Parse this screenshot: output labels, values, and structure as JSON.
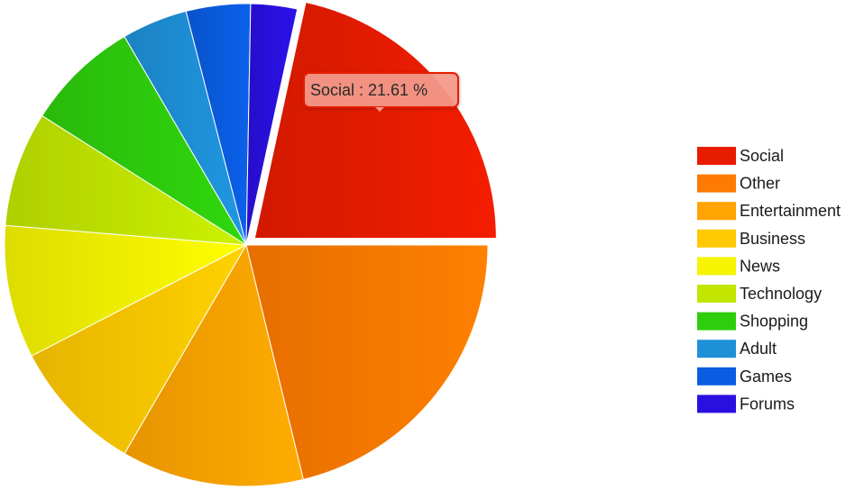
{
  "chart_data": {
    "type": "pie",
    "title": "",
    "unit": "%",
    "exploded_slice": "Social",
    "slices": [
      {
        "label": "Social",
        "value": 21.61,
        "color": "#e81c00"
      },
      {
        "label": "Other",
        "value": 21.2,
        "color": "#ff7a00"
      },
      {
        "label": "Entertainment",
        "value": 12.2,
        "color": "#ffa400"
      },
      {
        "label": "Business",
        "value": 9.0,
        "color": "#ffc800"
      },
      {
        "label": "News",
        "value": 8.9,
        "color": "#f6f400"
      },
      {
        "label": "Technology",
        "value": 7.7,
        "color": "#c2e600"
      },
      {
        "label": "Shopping",
        "value": 7.6,
        "color": "#2ece0c"
      },
      {
        "label": "Adult",
        "value": 4.4,
        "color": "#1e90d8"
      },
      {
        "label": "Games",
        "value": 4.3,
        "color": "#0a5ce0"
      },
      {
        "label": "Forums",
        "value": 3.1,
        "color": "#2a10e0"
      }
    ],
    "legend_position": "right"
  },
  "tooltip": {
    "text": "Social : 21.61 %",
    "border_color": "#e81c00"
  }
}
